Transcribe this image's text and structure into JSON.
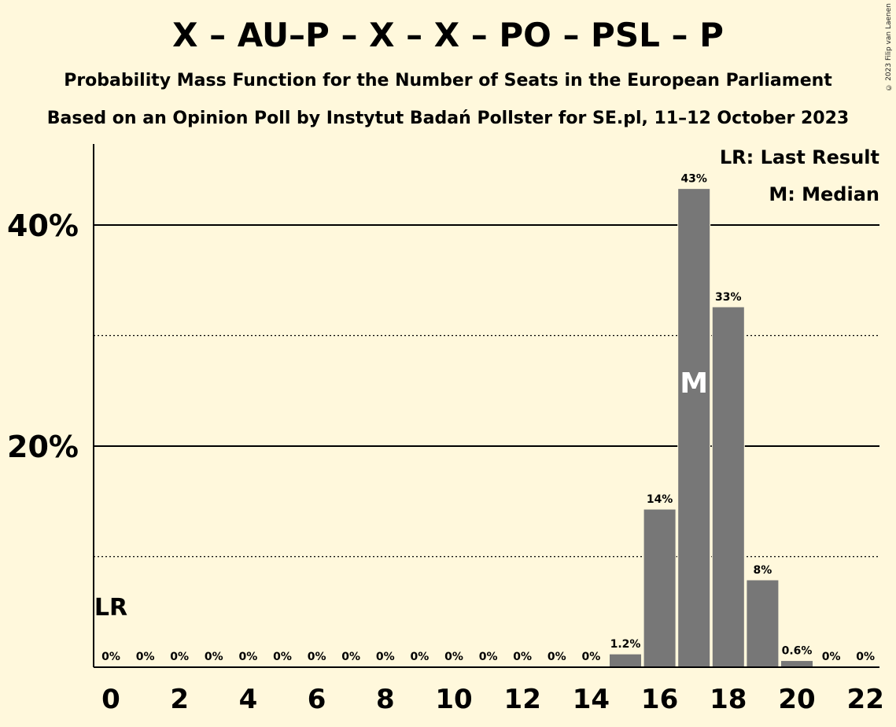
{
  "header": {
    "title": "X – AU–P – X – X – PO – PSL – P",
    "subtitle1": "Probability Mass Function for the Number of Seats in the European Parliament",
    "subtitle2": "Based on an Opinion Poll by Instytut Badań Pollster for SE.pl, 11–12 October 2023",
    "copyright": "© 2023 Filip van Laenen"
  },
  "legend": {
    "last_result": "LR: Last Result",
    "median": "M: Median"
  },
  "chart_data": {
    "type": "bar",
    "categories": [
      0,
      1,
      2,
      3,
      4,
      5,
      6,
      7,
      8,
      9,
      10,
      11,
      12,
      13,
      14,
      15,
      16,
      17,
      18,
      19,
      20,
      21,
      22
    ],
    "values": [
      0,
      0,
      0,
      0,
      0,
      0,
      0,
      0,
      0,
      0,
      0,
      0,
      0,
      0,
      0,
      1.2,
      14.3,
      43.3,
      32.6,
      7.9,
      0.6,
      0,
      0
    ],
    "value_labels": [
      "0%",
      "0%",
      "0%",
      "0%",
      "0%",
      "0%",
      "0%",
      "0%",
      "0%",
      "0%",
      "0%",
      "0%",
      "0%",
      "0%",
      "0%",
      "1.2%",
      "14%",
      "43%",
      "33%",
      "8%",
      "0.6%",
      "0%",
      "0%"
    ],
    "x_tick_labels": [
      "0",
      "2",
      "4",
      "6",
      "8",
      "10",
      "12",
      "14",
      "16",
      "18",
      "20",
      "22"
    ],
    "y_ticks": [
      20,
      40
    ],
    "y_tick_labels": [
      "20%",
      "40%"
    ],
    "y_minor_ticks": [
      10,
      30
    ],
    "ylim": [
      0,
      47
    ],
    "last_result_seat": 0,
    "last_result_label": "LR",
    "median_seat": 17,
    "median_label": "M",
    "bar_color": "#777777",
    "background_color": "#fff8dc",
    "legend_position": "top-right"
  }
}
